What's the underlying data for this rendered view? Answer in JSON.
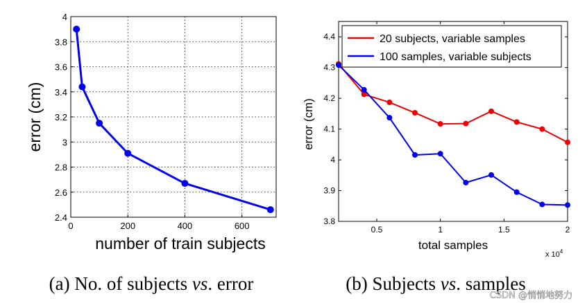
{
  "chart_data": [
    {
      "type": "line",
      "xlabel": "number of train subjects",
      "ylabel": "error (cm)",
      "xlim": [
        0,
        720
      ],
      "ylim": [
        2.4,
        4.0
      ],
      "xticks": [
        0,
        200,
        400,
        600
      ],
      "xtick_labels": [
        "0",
        "200",
        "400",
        "600"
      ],
      "yticks": [
        2.4,
        2.6,
        2.8,
        3.0,
        3.2,
        3.4,
        3.6,
        3.8,
        4.0
      ],
      "ytick_labels": [
        "2.4",
        "2.6",
        "2.8",
        "3",
        "3.2",
        "3.4",
        "3.6",
        "3.8",
        "4"
      ],
      "grid": true,
      "series": [
        {
          "name": "error",
          "color": "#0000ee",
          "x": [
            20,
            40,
            100,
            200,
            400,
            700
          ],
          "y": [
            3.9,
            3.44,
            3.15,
            2.91,
            2.67,
            2.46
          ]
        }
      ],
      "caption": {
        "prefix": "(a) No. of subjects ",
        "italic": "vs",
        "suffix": ". error"
      }
    },
    {
      "type": "line",
      "xlabel": "total samples",
      "ylabel": "error (cm)",
      "x_multiplier": "x 10",
      "x_multiplier_exp": "4",
      "xlim": [
        0.2,
        2.0
      ],
      "ylim": [
        3.8,
        4.45
      ],
      "xticks": [
        0.5,
        1.0,
        1.5,
        2.0
      ],
      "xtick_labels": [
        "0.5",
        "1",
        "1.5",
        "2"
      ],
      "yticks": [
        3.8,
        3.9,
        4.0,
        4.1,
        4.2,
        4.3,
        4.4
      ],
      "ytick_labels": [
        "3.8",
        "3.9",
        "4",
        "4.1",
        "4.2",
        "4.3",
        "4.4"
      ],
      "grid": false,
      "legend_position": "top-right",
      "series": [
        {
          "name": "20 subjects, variable samples",
          "color": "#ee0000",
          "x": [
            0.2,
            0.4,
            0.6,
            0.8,
            1.0,
            1.2,
            1.4,
            1.6,
            1.8,
            2.0
          ],
          "y": [
            4.312,
            4.213,
            4.187,
            4.153,
            4.117,
            4.118,
            4.158,
            4.123,
            4.1,
            4.057
          ]
        },
        {
          "name": "100 samples, variable subjects",
          "color": "#0000ee",
          "x": [
            0.2,
            0.4,
            0.6,
            0.8,
            1.0,
            1.2,
            1.4,
            1.6,
            1.8,
            2.0
          ],
          "y": [
            4.308,
            4.228,
            4.137,
            4.016,
            4.02,
            3.926,
            3.951,
            3.895,
            3.855,
            3.853
          ]
        }
      ],
      "caption": {
        "prefix": "(b) Subjects ",
        "italic": "vs",
        "suffix": ". samples"
      }
    }
  ],
  "watermark": "CSDN @悄悄地努力"
}
